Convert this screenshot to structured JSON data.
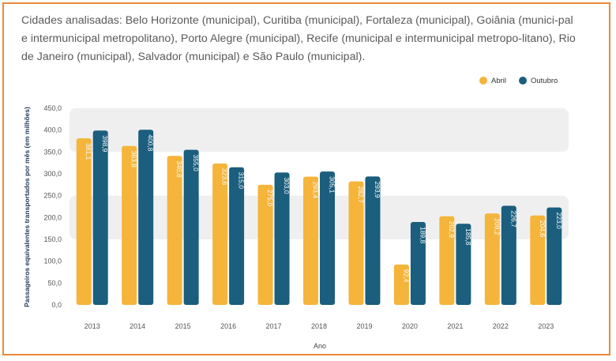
{
  "caption": "Cidades analisadas: Belo Horizonte (municipal), Curitiba (municipal), Fortaleza (municipal), Goiânia (munici-pal e intermunicipal metropolitano), Porto Alegre (municipal), Recife (municipal e intermunicipal metropo-litano), Rio de Janeiro (municipal), Salvador (municipal) e São Paulo (municipal).",
  "colors": {
    "abril": "#f5b43a",
    "outubro": "#1b5e7e",
    "band": "#efefef",
    "border": "#e8893a"
  },
  "chart_data": {
    "type": "bar",
    "categories": [
      "2013",
      "2014",
      "2015",
      "2016",
      "2017",
      "2018",
      "2019",
      "2020",
      "2021",
      "2022",
      "2023"
    ],
    "series": [
      {
        "name": "Abril",
        "values": [
          381.1,
          363.8,
          340.8,
          323.6,
          275.0,
          293.4,
          282.7,
          92.4,
          202.9,
          209.2,
          204.6
        ],
        "labels": [
          "381,1",
          "363,8",
          "340,8",
          "323,6",
          "275,0",
          "293,4",
          "282,7",
          "92,4",
          "202,9",
          "209,2",
          "204,6"
        ]
      },
      {
        "name": "Outubro",
        "values": [
          398.9,
          400.8,
          355.0,
          315.0,
          303.0,
          305.1,
          293.9,
          189.8,
          185.8,
          226.7,
          223.0
        ],
        "labels": [
          "398,9",
          "400,8",
          "355,0",
          "315,0",
          "303,0",
          "305,1",
          "293,9",
          "189,8",
          "185,8",
          "226,7",
          "223,0"
        ]
      }
    ],
    "xlabel": "Ano",
    "ylabel": "Passageiros equivalentes transportados por mês (em milhões)",
    "ylim": [
      0,
      450
    ],
    "yticks": [
      "0,0",
      "50,0",
      "100,0",
      "150,0",
      "200,0",
      "250,0",
      "300,0",
      "350,0",
      "400,0",
      "450,0"
    ],
    "legend": "top-right"
  }
}
